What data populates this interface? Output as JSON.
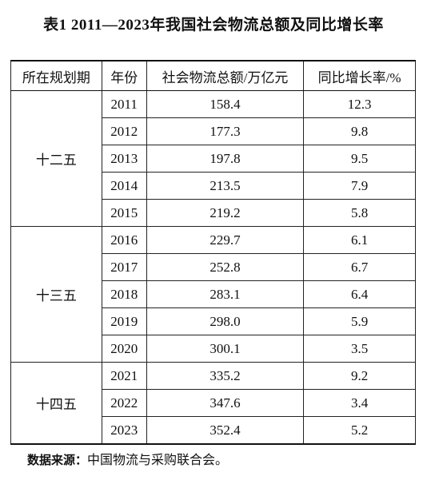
{
  "title": "表1 2011—2023年我国社会物流总额及同比增长率",
  "table": {
    "header": [
      "所在规划期",
      "年份",
      "社会物流总额/万亿元",
      "同比增长率/%"
    ],
    "groups": [
      {
        "period": "十二五",
        "rows": [
          [
            "2011",
            "158.4",
            "12.3"
          ],
          [
            "2012",
            "177.3",
            "9.8"
          ],
          [
            "2013",
            "197.8",
            "9.5"
          ],
          [
            "2014",
            "213.5",
            "7.9"
          ],
          [
            "2015",
            "219.2",
            "5.8"
          ]
        ]
      },
      {
        "period": "十三五",
        "rows": [
          [
            "2016",
            "229.7",
            "6.1"
          ],
          [
            "2017",
            "252.8",
            "6.7"
          ],
          [
            "2018",
            "283.1",
            "6.4"
          ],
          [
            "2019",
            "298.0",
            "5.9"
          ],
          [
            "2020",
            "300.1",
            "3.5"
          ]
        ]
      },
      {
        "period": "十四五",
        "rows": [
          [
            "2021",
            "335.2",
            "9.2"
          ],
          [
            "2022",
            "347.6",
            "3.4"
          ],
          [
            "2023",
            "352.4",
            "5.2"
          ]
        ]
      }
    ]
  },
  "source": {
    "label": "数据来源：",
    "text": "中国物流与采购联合会。"
  }
}
